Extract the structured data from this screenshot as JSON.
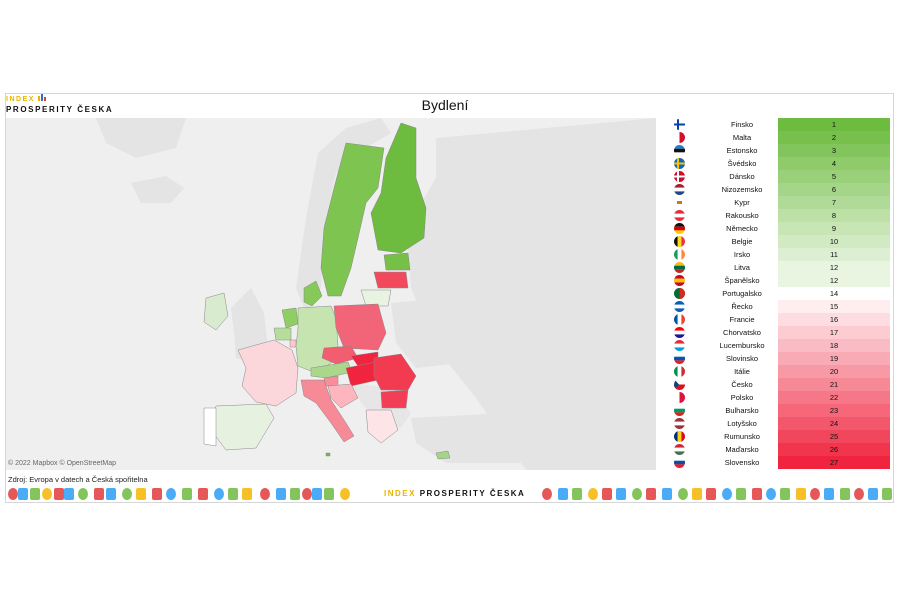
{
  "logo": {
    "line1": "INDEX",
    "line2": "PROSPERITY ČESKA"
  },
  "title": "Bydlení",
  "map": {
    "attribution": "© 2022 Mapbox  © OpenStreetMap",
    "source": "Zdroj: Evropa v datech a Česká spořitelna",
    "scale_colors": {
      "best": "#6dbb3f",
      "mid": "#ffffff",
      "worst": "#f0243e"
    }
  },
  "ranking": [
    {
      "country": "Finsko",
      "rank": "1",
      "flag": "fi"
    },
    {
      "country": "Malta",
      "rank": "2",
      "flag": "mt"
    },
    {
      "country": "Estonsko",
      "rank": "3",
      "flag": "ee"
    },
    {
      "country": "Švédsko",
      "rank": "4",
      "flag": "se"
    },
    {
      "country": "Dánsko",
      "rank": "5",
      "flag": "dk"
    },
    {
      "country": "Nizozemsko",
      "rank": "6",
      "flag": "nl"
    },
    {
      "country": "Kypr",
      "rank": "7",
      "flag": "cy"
    },
    {
      "country": "Rakousko",
      "rank": "8",
      "flag": "at"
    },
    {
      "country": "Německo",
      "rank": "9",
      "flag": "de"
    },
    {
      "country": "Belgie",
      "rank": "10",
      "flag": "be"
    },
    {
      "country": "Irsko",
      "rank": "11",
      "flag": "ie"
    },
    {
      "country": "Litva",
      "rank": "12",
      "flag": "lt"
    },
    {
      "country": "Španělsko",
      "rank": "12",
      "flag": "es"
    },
    {
      "country": "Portugalsko",
      "rank": "14",
      "flag": "pt"
    },
    {
      "country": "Řecko",
      "rank": "15",
      "flag": "gr"
    },
    {
      "country": "Francie",
      "rank": "16",
      "flag": "fr"
    },
    {
      "country": "Chorvatsko",
      "rank": "17",
      "flag": "hr"
    },
    {
      "country": "Lucembursko",
      "rank": "18",
      "flag": "lu"
    },
    {
      "country": "Slovinsko",
      "rank": "19",
      "flag": "si"
    },
    {
      "country": "Itálie",
      "rank": "20",
      "flag": "it"
    },
    {
      "country": "Česko",
      "rank": "21",
      "flag": "cz"
    },
    {
      "country": "Polsko",
      "rank": "22",
      "flag": "pl"
    },
    {
      "country": "Bulharsko",
      "rank": "23",
      "flag": "bg"
    },
    {
      "country": "Lotyšsko",
      "rank": "24",
      "flag": "lv"
    },
    {
      "country": "Rumunsko",
      "rank": "25",
      "flag": "ro"
    },
    {
      "country": "Maďarsko",
      "rank": "26",
      "flag": "hu"
    },
    {
      "country": "Slovensko",
      "rank": "27",
      "flag": "sk"
    }
  ],
  "footer": {
    "logo_part1": "INDEX",
    "logo_part2": "PROSPERITY ČESKA"
  }
}
